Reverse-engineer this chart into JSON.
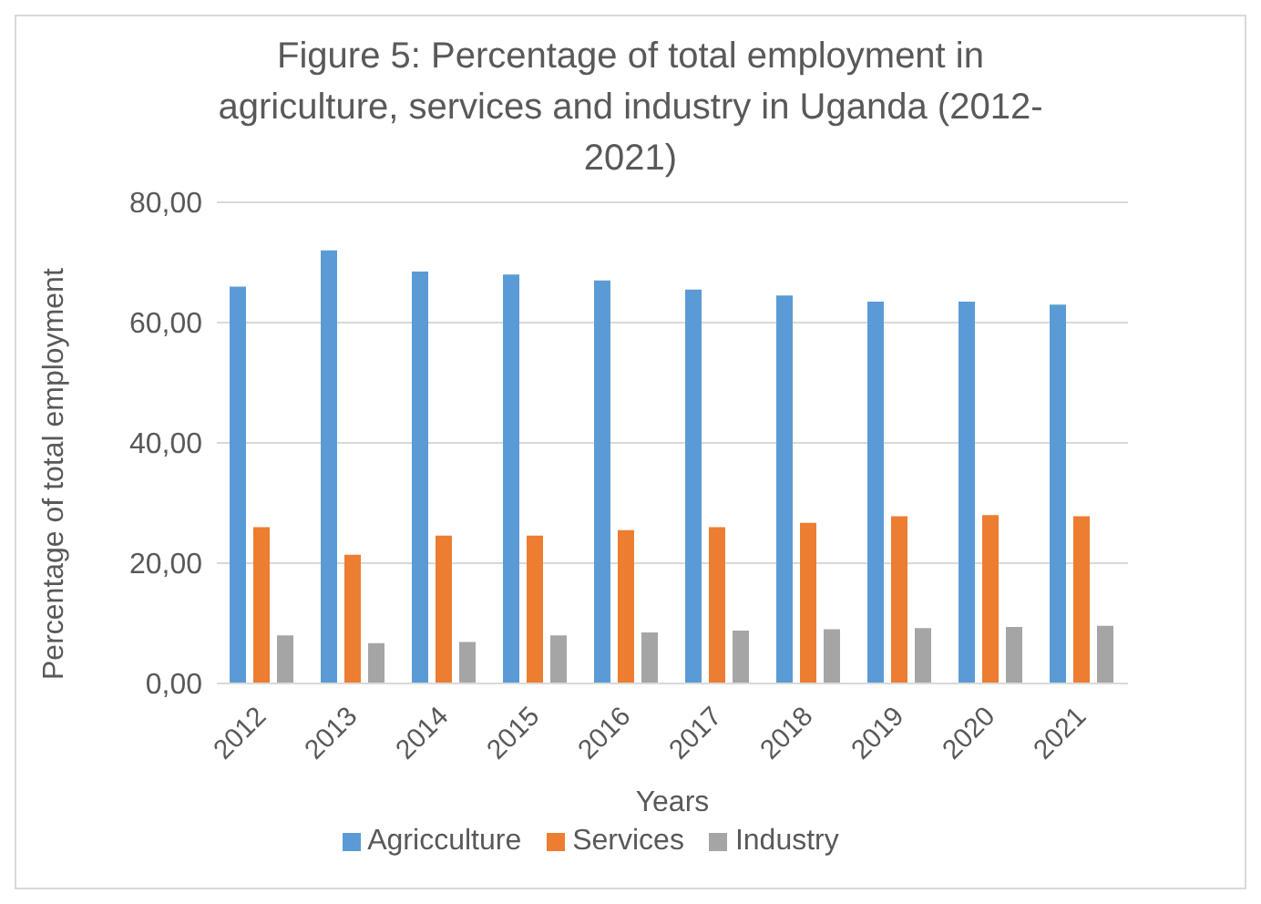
{
  "chart_data": {
    "type": "bar",
    "title": "Figure 5: Percentage of total employment in agriculture, services and industry in Uganda (2012-2021)",
    "xlabel": "Years",
    "ylabel": "Percentage of total employment",
    "categories": [
      "2012",
      "2013",
      "2014",
      "2015",
      "2016",
      "2017",
      "2018",
      "2019",
      "2020",
      "2021"
    ],
    "series": [
      {
        "name": "Agricculture",
        "color": "#5b9bd5",
        "values": [
          66,
          72,
          68.5,
          68,
          67,
          65.5,
          64.5,
          63.5,
          63.5,
          63
        ]
      },
      {
        "name": "Services",
        "color": "#ed7d31",
        "values": [
          26,
          21.4,
          24.6,
          24.6,
          25.5,
          26,
          26.7,
          27.8,
          28,
          27.8
        ]
      },
      {
        "name": "Industry",
        "color": "#a5a5a5",
        "values": [
          8,
          6.7,
          6.9,
          8,
          8.5,
          8.8,
          9,
          9.2,
          9.4,
          9.6
        ]
      }
    ],
    "ylim": [
      0,
      80
    ],
    "yticks": [
      {
        "value": 0,
        "label": "0,00"
      },
      {
        "value": 20,
        "label": "20,00"
      },
      {
        "value": 40,
        "label": "40,00"
      },
      {
        "value": 60,
        "label": "60,00"
      },
      {
        "value": 80,
        "label": "80,00"
      }
    ],
    "grid": "y",
    "legend": "bottom"
  }
}
